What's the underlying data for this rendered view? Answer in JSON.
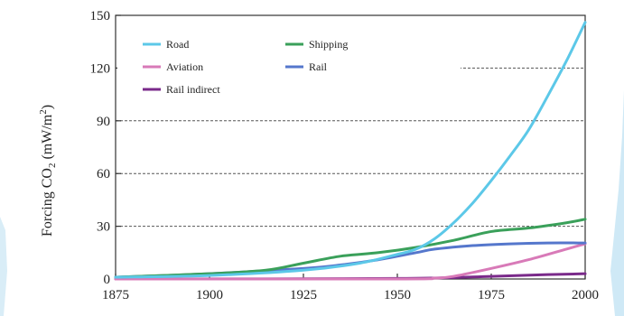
{
  "chart_data": {
    "type": "line",
    "ylabel": "Forcing CO",
    "ylabel_sub": "2",
    "ylabel_unit": " (mW/m",
    "ylabel_sup": "2",
    "ylabel_close": ")",
    "xlim": [
      1875,
      2000
    ],
    "ylim": [
      0,
      150
    ],
    "xticks": [
      1875,
      1900,
      1925,
      1950,
      1975,
      2000
    ],
    "yticks": [
      0,
      30,
      60,
      90,
      120,
      150
    ],
    "grid": "horizontal-dashed",
    "legend_placement": "top-left",
    "series": [
      {
        "name": "Road",
        "color": "#5cc8e8",
        "x": [
          1875,
          1900,
          1925,
          1940,
          1950,
          1955,
          1960,
          1965,
          1970,
          1975,
          1980,
          1985,
          1990,
          1995,
          2000
        ],
        "y": [
          1,
          2,
          5,
          9,
          14,
          17,
          23,
          32,
          43,
          56,
          70,
          85,
          104,
          124,
          146
        ]
      },
      {
        "name": "Shipping",
        "color": "#3aa05a",
        "x": [
          1875,
          1900,
          1915,
          1925,
          1935,
          1945,
          1955,
          1965,
          1975,
          1985,
          1995,
          2000
        ],
        "y": [
          1,
          3,
          5,
          9,
          13,
          15,
          18,
          22,
          27,
          29,
          32,
          34
        ]
      },
      {
        "name": "Aviation",
        "color": "#d87ab8",
        "x": [
          1875,
          1950,
          1960,
          1965,
          1975,
          1985,
          1995,
          2000
        ],
        "y": [
          0,
          0,
          0.5,
          1.5,
          6,
          11,
          17,
          20
        ]
      },
      {
        "name": "Rail",
        "color": "#5577cc",
        "x": [
          1875,
          1900,
          1925,
          1935,
          1945,
          1955,
          1960,
          1970,
          1980,
          1990,
          2000
        ],
        "y": [
          1,
          3,
          6,
          8,
          11,
          15,
          17,
          19,
          20,
          20.5,
          20.5
        ]
      },
      {
        "name": "Rail indirect",
        "color": "#7a2a8a",
        "x": [
          1875,
          1950,
          1975,
          1990,
          2000
        ],
        "y": [
          0,
          0.3,
          1.5,
          2.5,
          3
        ]
      }
    ],
    "legend": [
      {
        "label": "Road",
        "color": "#5cc8e8"
      },
      {
        "label": "Shipping",
        "color": "#3aa05a"
      },
      {
        "label": "Aviation",
        "color": "#d87ab8"
      },
      {
        "label": "Rail",
        "color": "#5577cc"
      },
      {
        "label": "Rail indirect",
        "color": "#7a2a8a"
      }
    ]
  }
}
